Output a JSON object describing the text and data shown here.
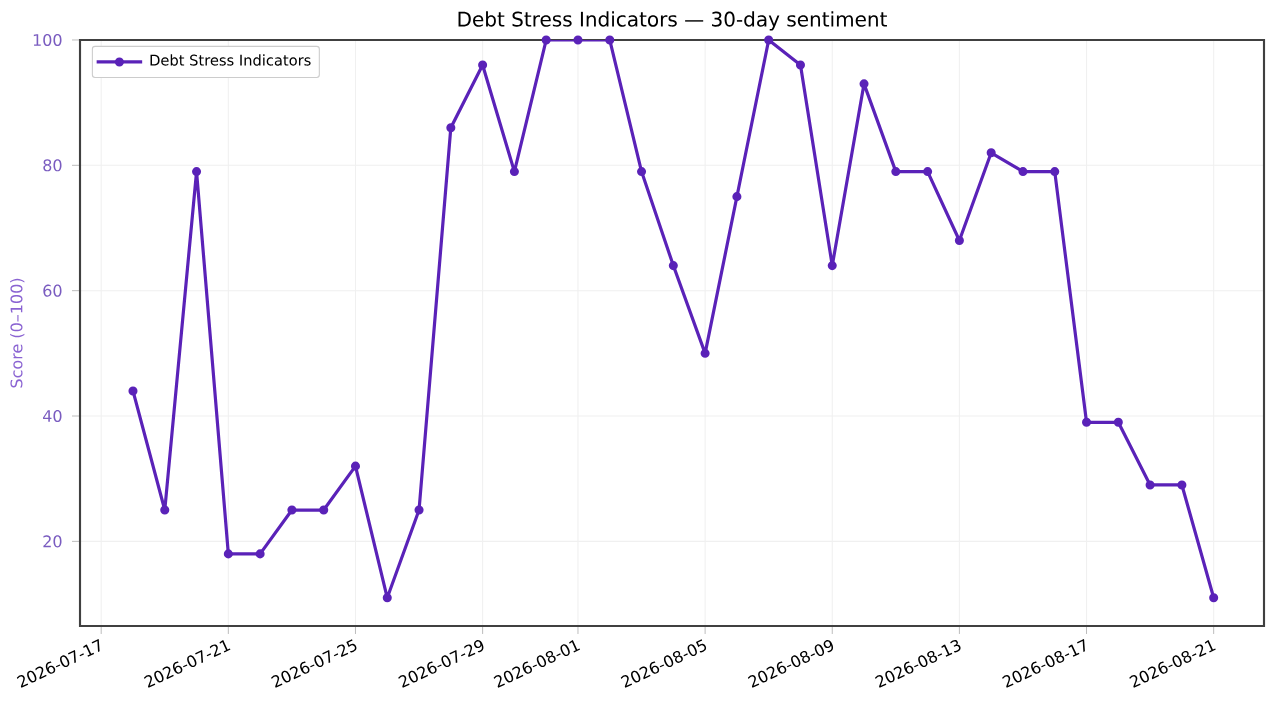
{
  "chart_data": {
    "type": "line",
    "title": "Debt Stress Indicators — 30-day sentiment",
    "ylabel": "Score (0–100)",
    "x": [
      "2026-07-18",
      "2026-07-19",
      "2026-07-20",
      "2026-07-21",
      "2026-07-22",
      "2026-07-23",
      "2026-07-24",
      "2026-07-25",
      "2026-07-26",
      "2026-07-27",
      "2026-07-28",
      "2026-07-29",
      "2026-07-30",
      "2026-07-31",
      "2026-08-01",
      "2026-08-02",
      "2026-08-03",
      "2026-08-04",
      "2026-08-05",
      "2026-08-06",
      "2026-08-07",
      "2026-08-08",
      "2026-08-09",
      "2026-08-10",
      "2026-08-11",
      "2026-08-12",
      "2026-08-13",
      "2026-08-14",
      "2026-08-15",
      "2026-08-16",
      "2026-08-17",
      "2026-08-18",
      "2026-08-19",
      "2026-08-20",
      "2026-08-21"
    ],
    "series": [
      {
        "name": "Debt Stress Indicators",
        "color": "#5a22b8",
        "values": [
          44,
          25,
          79,
          18,
          18,
          25,
          25,
          32,
          11,
          25,
          86,
          96,
          79,
          100,
          100,
          100,
          79,
          64,
          50,
          75,
          100,
          96,
          64,
          93,
          79,
          79,
          68,
          82,
          79,
          79,
          39,
          39,
          29,
          29,
          11
        ]
      }
    ],
    "xlim": [
      "2026-07-16T08:00",
      "2026-08-22T14:00"
    ],
    "xticks": [
      "2026-07-17",
      "2026-07-21",
      "2026-07-25",
      "2026-07-29",
      "2026-08-01",
      "2026-08-05",
      "2026-08-09",
      "2026-08-13",
      "2026-08-17",
      "2026-08-21"
    ],
    "ylim": [
      6.5,
      100
    ],
    "yticks": [
      20,
      40,
      60,
      80,
      100
    ],
    "grid": true,
    "legend": "top left",
    "marker": "circle",
    "line_style": "solid"
  }
}
